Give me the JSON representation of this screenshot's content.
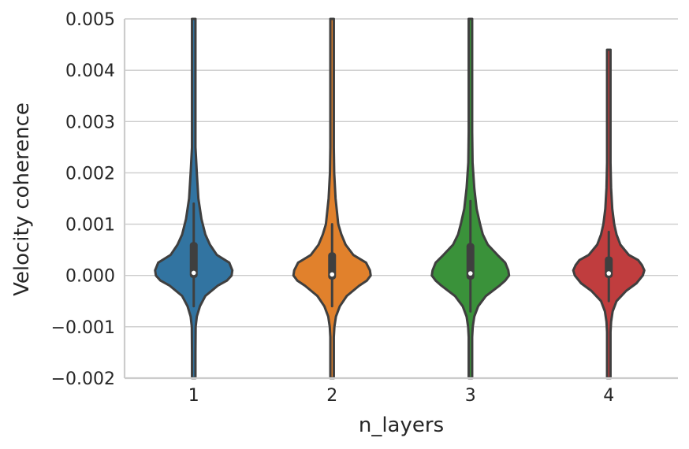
{
  "chart_data": {
    "type": "violin",
    "xlabel": "n_layers",
    "ylabel": "Velocity coherence",
    "categories": [
      "1",
      "2",
      "3",
      "4"
    ],
    "ylim": [
      -0.002,
      0.005
    ],
    "yticks": [
      -0.002,
      -0.001,
      0.0,
      0.001,
      0.002,
      0.003,
      0.004,
      0.005
    ],
    "ytick_labels": [
      "−0.002",
      "−0.001",
      "0.000",
      "0.001",
      "0.002",
      "0.003",
      "0.004",
      "0.005"
    ],
    "grid": "horizontal",
    "series": [
      {
        "category": "1",
        "color": "#3274a1",
        "median": 5e-05,
        "q1": -5e-05,
        "q3": 0.00065,
        "whisker_low": -0.0006,
        "whisker_high": 0.0014,
        "min": -0.002,
        "max": 0.005,
        "density": [
          [
            -0.002,
            0.03
          ],
          [
            -0.0015,
            0.03
          ],
          [
            -0.001,
            0.05
          ],
          [
            -0.0008,
            0.08
          ],
          [
            -0.0006,
            0.16
          ],
          [
            -0.0004,
            0.3
          ],
          [
            -0.0002,
            0.62
          ],
          [
            -0.0001,
            0.86
          ],
          [
            0.0,
            0.98
          ],
          [
            0.0001,
            1.0
          ],
          [
            0.00025,
            0.92
          ],
          [
            0.0004,
            0.6
          ],
          [
            0.0006,
            0.42
          ],
          [
            0.0008,
            0.3
          ],
          [
            0.0011,
            0.2
          ],
          [
            0.0015,
            0.12
          ],
          [
            0.002,
            0.08
          ],
          [
            0.0025,
            0.045
          ],
          [
            0.003,
            0.03
          ],
          [
            0.004,
            0.025
          ],
          [
            0.005,
            0.025
          ]
        ]
      },
      {
        "category": "2",
        "color": "#e1812c",
        "median": 2e-05,
        "q1": -8e-05,
        "q3": 0.00045,
        "whisker_low": -0.0006,
        "whisker_high": 0.001,
        "min": -0.002,
        "max": 0.005,
        "density": [
          [
            -0.002,
            0.025
          ],
          [
            -0.0015,
            0.025
          ],
          [
            -0.0012,
            0.04
          ],
          [
            -0.001,
            0.06
          ],
          [
            -0.0008,
            0.1
          ],
          [
            -0.0006,
            0.2
          ],
          [
            -0.0004,
            0.38
          ],
          [
            -0.0002,
            0.7
          ],
          [
            -0.0001,
            0.9
          ],
          [
            0.0,
            1.0
          ],
          [
            0.0001,
            0.98
          ],
          [
            0.00025,
            0.88
          ],
          [
            0.0004,
            0.55
          ],
          [
            0.0006,
            0.35
          ],
          [
            0.0008,
            0.24
          ],
          [
            0.001,
            0.16
          ],
          [
            0.0015,
            0.09
          ],
          [
            0.002,
            0.055
          ],
          [
            0.0025,
            0.035
          ],
          [
            0.003,
            0.028
          ],
          [
            0.004,
            0.025
          ],
          [
            0.005,
            0.025
          ]
        ]
      },
      {
        "category": "3",
        "color": "#3a923a",
        "median": 4e-05,
        "q1": -8e-05,
        "q3": 0.00063,
        "whisker_low": -0.0007,
        "whisker_high": 0.00145,
        "min": -0.002,
        "max": 0.005,
        "density": [
          [
            -0.002,
            0.025
          ],
          [
            -0.0015,
            0.025
          ],
          [
            -0.0012,
            0.035
          ],
          [
            -0.001,
            0.06
          ],
          [
            -0.0008,
            0.1
          ],
          [
            -0.0006,
            0.2
          ],
          [
            -0.0004,
            0.4
          ],
          [
            -0.0002,
            0.75
          ],
          [
            -0.0001,
            0.9
          ],
          [
            0.0,
            1.0
          ],
          [
            0.0001,
            0.98
          ],
          [
            0.00025,
            0.9
          ],
          [
            0.0004,
            0.7
          ],
          [
            0.0006,
            0.45
          ],
          [
            0.0008,
            0.32
          ],
          [
            0.001,
            0.25
          ],
          [
            0.0013,
            0.16
          ],
          [
            0.0017,
            0.1
          ],
          [
            0.0022,
            0.055
          ],
          [
            0.0028,
            0.035
          ],
          [
            0.0035,
            0.028
          ],
          [
            0.005,
            0.025
          ]
        ]
      },
      {
        "category": "4",
        "color": "#c03d3e",
        "median": 4e-05,
        "q1": -5e-05,
        "q3": 0.00037,
        "whisker_low": -0.0005,
        "whisker_high": 0.00085,
        "min": -0.002,
        "max": 0.0044,
        "density": [
          [
            -0.002,
            0.025
          ],
          [
            -0.0015,
            0.025
          ],
          [
            -0.0011,
            0.04
          ],
          [
            -0.0009,
            0.06
          ],
          [
            -0.0007,
            0.1
          ],
          [
            -0.0005,
            0.2
          ],
          [
            -0.0003,
            0.45
          ],
          [
            -0.00015,
            0.72
          ],
          [
            0.0,
            0.88
          ],
          [
            0.0001,
            0.92
          ],
          [
            0.0002,
            0.86
          ],
          [
            0.0003,
            0.76
          ],
          [
            0.0004,
            0.52
          ],
          [
            0.0006,
            0.3
          ],
          [
            0.0008,
            0.2
          ],
          [
            0.001,
            0.14
          ],
          [
            0.0013,
            0.09
          ],
          [
            0.0017,
            0.06
          ],
          [
            0.0022,
            0.04
          ],
          [
            0.003,
            0.03
          ],
          [
            0.0037,
            0.028
          ],
          [
            0.0044,
            0.025
          ]
        ]
      }
    ]
  }
}
